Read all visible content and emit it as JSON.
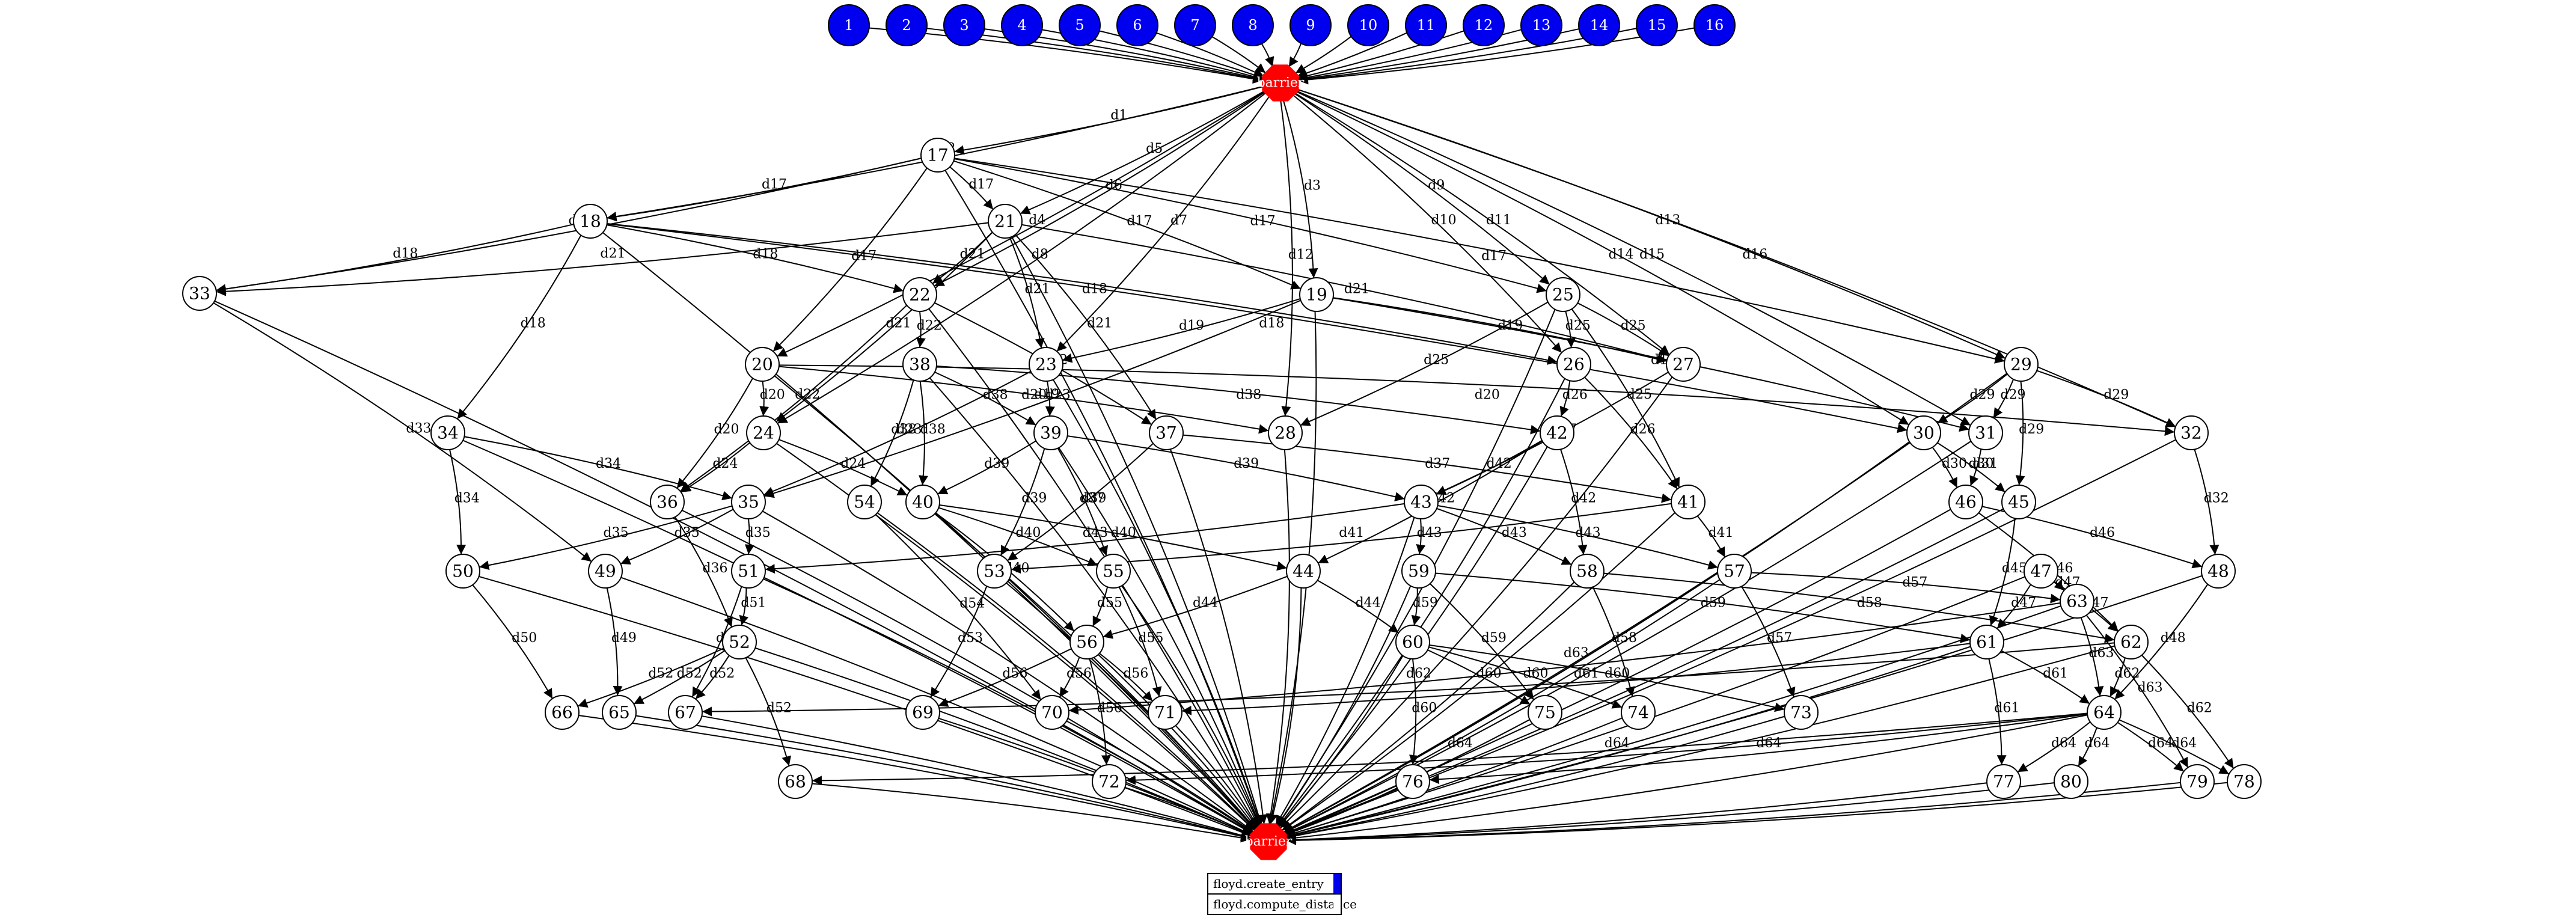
{
  "graph": {
    "barrier_label": "barrier",
    "colors": {
      "source": "#0000ee",
      "barrier": "#ff0000",
      "node": "#ffffff",
      "stroke": "#000000"
    },
    "sources": [
      "1",
      "2",
      "3",
      "4",
      "5",
      "6",
      "7",
      "8",
      "9",
      "10",
      "11",
      "12",
      "13",
      "14",
      "15",
      "16"
    ],
    "tasks": [
      "17",
      "18",
      "19",
      "20",
      "21",
      "22",
      "23",
      "24",
      "25",
      "26",
      "27",
      "28",
      "29",
      "30",
      "31",
      "32",
      "33",
      "34",
      "35",
      "36",
      "37",
      "38",
      "39",
      "40",
      "41",
      "42",
      "43",
      "44",
      "45",
      "46",
      "47",
      "48",
      "49",
      "50",
      "51",
      "52",
      "53",
      "54",
      "55",
      "56",
      "57",
      "58",
      "59",
      "60",
      "61",
      "62",
      "63",
      "64",
      "65",
      "66",
      "67",
      "68",
      "69",
      "70",
      "71",
      "72",
      "73",
      "74",
      "75",
      "76",
      "77",
      "78",
      "79",
      "80"
    ],
    "edges": [
      {
        "from": "17",
        "to": "18",
        "label": "d17"
      },
      {
        "from": "17",
        "to": "19",
        "label": "d17"
      },
      {
        "from": "17",
        "to": "20",
        "label": "d17"
      },
      {
        "from": "17",
        "to": "21",
        "label": "d17"
      },
      {
        "from": "17",
        "to": "25",
        "label": "d17"
      },
      {
        "from": "17",
        "to": "29",
        "label": "d17"
      },
      {
        "from": "17",
        "to": "33",
        "label": "d17"
      },
      {
        "from": "18",
        "to": "22",
        "label": "d18"
      },
      {
        "from": "18",
        "to": "30",
        "label": "d18"
      },
      {
        "from": "18",
        "to": "34",
        "label": "d18"
      },
      {
        "from": "18",
        "to": "26",
        "label": "d18"
      },
      {
        "from": "18",
        "to": "33",
        "label": "d18"
      },
      {
        "from": "19",
        "to": "23",
        "label": "d19"
      },
      {
        "from": "19",
        "to": "27",
        "label": "d19"
      },
      {
        "from": "19",
        "to": "31",
        "label": "d19"
      },
      {
        "from": "19",
        "to": "35",
        "label": "d19"
      },
      {
        "from": "20",
        "to": "24",
        "label": "d20"
      },
      {
        "from": "20",
        "to": "28",
        "label": "d20"
      },
      {
        "from": "20",
        "to": "32",
        "label": "d20"
      },
      {
        "from": "20",
        "to": "36",
        "label": "d20"
      },
      {
        "from": "21",
        "to": "22",
        "label": "d21"
      },
      {
        "from": "21",
        "to": "23",
        "label": "d21"
      },
      {
        "from": "21",
        "to": "24",
        "label": "d21"
      },
      {
        "from": "21",
        "to": "27",
        "label": "d21"
      },
      {
        "from": "21",
        "to": "33",
        "label": "d21"
      },
      {
        "from": "21",
        "to": "37",
        "label": "d21"
      },
      {
        "from": "22",
        "to": "38",
        "label": "d22"
      },
      {
        "from": "22",
        "to": "37",
        "label": "d22"
      },
      {
        "from": "22",
        "to": "36",
        "label": "d22"
      },
      {
        "from": "23",
        "to": "39",
        "label": "d23"
      },
      {
        "from": "23",
        "to": "35",
        "label": "d23"
      },
      {
        "from": "24",
        "to": "40",
        "label": "d24"
      },
      {
        "from": "24",
        "to": "36",
        "label": "d24"
      },
      {
        "from": "25",
        "to": "26",
        "label": "d25"
      },
      {
        "from": "25",
        "to": "27",
        "label": "d25"
      },
      {
        "from": "25",
        "to": "28",
        "label": "d25"
      },
      {
        "from": "25",
        "to": "41",
        "label": "d25"
      },
      {
        "from": "26",
        "to": "42",
        "label": "d26"
      },
      {
        "from": "26",
        "to": "41",
        "label": "d26"
      },
      {
        "from": "27",
        "to": "43",
        "label": "d27"
      },
      {
        "from": "29",
        "to": "30",
        "label": "d29"
      },
      {
        "from": "29",
        "to": "31",
        "label": "d29"
      },
      {
        "from": "29",
        "to": "32",
        "label": "d29"
      },
      {
        "from": "29",
        "to": "45",
        "label": "d29"
      },
      {
        "from": "30",
        "to": "46",
        "label": "d30"
      },
      {
        "from": "30",
        "to": "45",
        "label": "d30"
      },
      {
        "from": "31",
        "to": "46",
        "label": "d31"
      },
      {
        "from": "32",
        "to": "48",
        "label": "d32"
      },
      {
        "from": "33",
        "to": "49",
        "label": "d33"
      },
      {
        "from": "34",
        "to": "35",
        "label": "d34"
      },
      {
        "from": "34",
        "to": "50",
        "label": "d34"
      },
      {
        "from": "35",
        "to": "51",
        "label": "d35"
      },
      {
        "from": "35",
        "to": "50",
        "label": "d35"
      },
      {
        "from": "35",
        "to": "49",
        "label": "d35"
      },
      {
        "from": "36",
        "to": "52",
        "label": "d36"
      },
      {
        "from": "37",
        "to": "53",
        "label": "d37"
      },
      {
        "from": "37",
        "to": "41",
        "label": "d37"
      },
      {
        "from": "38",
        "to": "39",
        "label": "d38"
      },
      {
        "from": "38",
        "to": "40",
        "label": "d38"
      },
      {
        "from": "38",
        "to": "42",
        "label": "d38"
      },
      {
        "from": "38",
        "to": "54",
        "label": "d38"
      },
      {
        "from": "39",
        "to": "40",
        "label": "d39"
      },
      {
        "from": "39",
        "to": "43",
        "label": "d39"
      },
      {
        "from": "39",
        "to": "53",
        "label": "d39"
      },
      {
        "from": "39",
        "to": "55",
        "label": "d39"
      },
      {
        "from": "40",
        "to": "44",
        "label": "d40"
      },
      {
        "from": "40",
        "to": "56",
        "label": "d40"
      },
      {
        "from": "40",
        "to": "55",
        "label": "d40"
      },
      {
        "from": "41",
        "to": "57",
        "label": "d41"
      },
      {
        "from": "41",
        "to": "53",
        "label": "d41"
      },
      {
        "from": "42",
        "to": "43",
        "label": "d42"
      },
      {
        "from": "42",
        "to": "58",
        "label": "d42"
      },
      {
        "from": "42",
        "to": "44",
        "label": "d42"
      },
      {
        "from": "43",
        "to": "59",
        "label": "d43"
      },
      {
        "from": "43",
        "to": "58",
        "label": "d43"
      },
      {
        "from": "43",
        "to": "57",
        "label": "d43"
      },
      {
        "from": "43",
        "to": "51",
        "label": "d43"
      },
      {
        "from": "44",
        "to": "60",
        "label": "d44"
      },
      {
        "from": "44",
        "to": "56",
        "label": "d44"
      },
      {
        "from": "45",
        "to": "61",
        "label": "d45"
      },
      {
        "from": "46",
        "to": "62",
        "label": "d46"
      },
      {
        "from": "46",
        "to": "48",
        "label": "d46"
      },
      {
        "from": "47",
        "to": "61",
        "label": "d47"
      },
      {
        "from": "47",
        "to": "62",
        "label": "d47"
      },
      {
        "from": "47",
        "to": "63",
        "label": "d47"
      },
      {
        "from": "48",
        "to": "64",
        "label": "d48"
      },
      {
        "from": "49",
        "to": "65",
        "label": "d49"
      },
      {
        "from": "50",
        "to": "66",
        "label": "d50"
      },
      {
        "from": "51",
        "to": "52",
        "label": "d51"
      },
      {
        "from": "51",
        "to": "67",
        "label": "d51"
      },
      {
        "from": "52",
        "to": "65",
        "label": "d52"
      },
      {
        "from": "52",
        "to": "66",
        "label": "d52"
      },
      {
        "from": "52",
        "to": "67",
        "label": "d52"
      },
      {
        "from": "52",
        "to": "68",
        "label": "d52"
      },
      {
        "from": "53",
        "to": "69",
        "label": "d53"
      },
      {
        "from": "54",
        "to": "70",
        "label": "d54"
      },
      {
        "from": "55",
        "to": "56",
        "label": "d55"
      },
      {
        "from": "55",
        "to": "71",
        "label": "d55"
      },
      {
        "from": "56",
        "to": "69",
        "label": "d56"
      },
      {
        "from": "56",
        "to": "70",
        "label": "d56"
      },
      {
        "from": "56",
        "to": "71",
        "label": "d56"
      },
      {
        "from": "56",
        "to": "72",
        "label": "d56"
      },
      {
        "from": "57",
        "to": "73",
        "label": "d57"
      },
      {
        "from": "57",
        "to": "63",
        "label": "d57"
      },
      {
        "from": "58",
        "to": "74",
        "label": "d58"
      },
      {
        "from": "58",
        "to": "62",
        "label": "d58"
      },
      {
        "from": "59",
        "to": "60",
        "label": "d59"
      },
      {
        "from": "59",
        "to": "75",
        "label": "d59"
      },
      {
        "from": "59",
        "to": "61",
        "label": "d59"
      },
      {
        "from": "60",
        "to": "73",
        "label": "d60"
      },
      {
        "from": "60",
        "to": "74",
        "label": "d60"
      },
      {
        "from": "60",
        "to": "75",
        "label": "d60"
      },
      {
        "from": "60",
        "to": "76",
        "label": "d60"
      },
      {
        "from": "61",
        "to": "64",
        "label": "d61"
      },
      {
        "from": "61",
        "to": "71",
        "label": "d61"
      },
      {
        "from": "61",
        "to": "77",
        "label": "d61"
      },
      {
        "from": "62",
        "to": "64",
        "label": "d62"
      },
      {
        "from": "62",
        "to": "78",
        "label": "d62"
      },
      {
        "from": "62",
        "to": "67",
        "label": "d62"
      },
      {
        "from": "63",
        "to": "64",
        "label": "d63"
      },
      {
        "from": "63",
        "to": "79",
        "label": "d63"
      },
      {
        "from": "63",
        "to": "70",
        "label": "d63"
      },
      {
        "from": "64",
        "to": "72",
        "label": "d64"
      },
      {
        "from": "64",
        "to": "76",
        "label": "d64"
      },
      {
        "from": "64",
        "to": "77",
        "label": "d64"
      },
      {
        "from": "64",
        "to": "78",
        "label": "d64"
      },
      {
        "from": "64",
        "to": "79",
        "label": "d64"
      },
      {
        "from": "64",
        "to": "80",
        "label": "d64"
      },
      {
        "from": "64",
        "to": "68",
        "label": "d64"
      },
      {
        "from": "barrier_top",
        "to": "17",
        "label": "d1"
      },
      {
        "from": "barrier_top",
        "to": "18",
        "label": "d2"
      },
      {
        "from": "barrier_top",
        "to": "19",
        "label": "d3"
      },
      {
        "from": "barrier_top",
        "to": "20",
        "label": "d4"
      },
      {
        "from": "barrier_top",
        "to": "21",
        "label": "d5"
      },
      {
        "from": "barrier_top",
        "to": "22",
        "label": "d6"
      },
      {
        "from": "barrier_top",
        "to": "23",
        "label": "d7"
      },
      {
        "from": "barrier_top",
        "to": "24",
        "label": "d8"
      },
      {
        "from": "barrier_top",
        "to": "25",
        "label": "d9"
      },
      {
        "from": "barrier_top",
        "to": "26",
        "label": "d10"
      },
      {
        "from": "barrier_top",
        "to": "27",
        "label": "d11"
      },
      {
        "from": "barrier_top",
        "to": "28",
        "label": "d12"
      },
      {
        "from": "barrier_top",
        "to": "29",
        "label": "d13"
      },
      {
        "from": "barrier_top",
        "to": "30",
        "label": "d14"
      },
      {
        "from": "barrier_top",
        "to": "31",
        "label": "d15"
      },
      {
        "from": "barrier_top",
        "to": "32",
        "label": "d16"
      }
    ]
  },
  "legend": [
    {
      "label": "floyd.create_entry",
      "color": "#0000ee"
    },
    {
      "label": "floyd.compute_distance",
      "color": "#ffffff"
    }
  ]
}
